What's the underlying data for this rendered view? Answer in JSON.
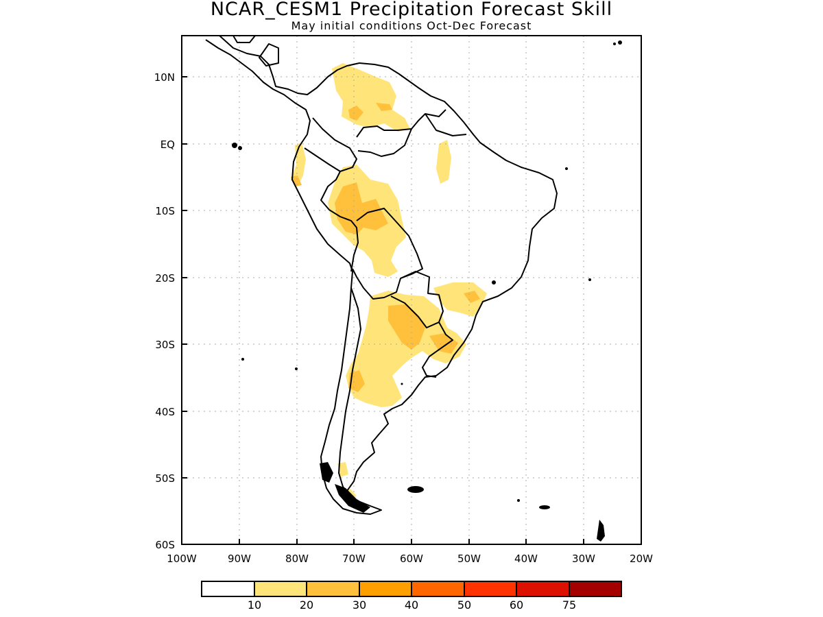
{
  "title": "NCAR_CESM1 Precipitation Forecast Skill",
  "subtitle": "May initial conditions  Oct-Dec Forecast",
  "lon_ticks": [
    "100W",
    "90W",
    "80W",
    "70W",
    "60W",
    "50W",
    "40W",
    "30W",
    "20W"
  ],
  "lat_ticks": [
    "10N",
    "EQ",
    "10S",
    "20S",
    "30S",
    "40S",
    "50S",
    "60S"
  ],
  "colorbar": {
    "colors": [
      "#ffffff",
      "#ffe47a",
      "#ffc03c",
      "#ffa000",
      "#ff6600",
      "#ff3300",
      "#dd1100",
      "#a50000"
    ],
    "labels": [
      "10",
      "20",
      "30",
      "40",
      "50",
      "60",
      "75"
    ]
  }
}
